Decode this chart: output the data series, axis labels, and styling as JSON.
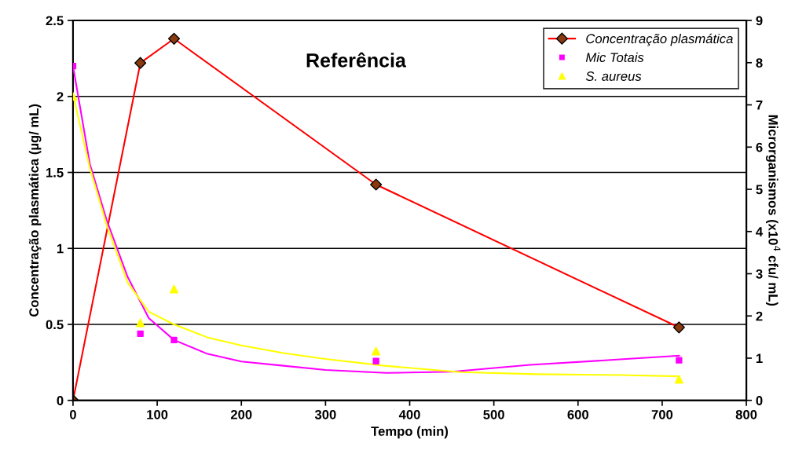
{
  "chart_data": {
    "type": "line",
    "title": "Referência",
    "xlabel": "Tempo (min)",
    "ylabel": "Concentração plasmática (µg/ mL)",
    "y2label": "Microrganismos (x10$^{4}$ cfu/ mL)",
    "xlim": [
      0,
      800
    ],
    "xticks": [
      0,
      100,
      200,
      300,
      400,
      500,
      600,
      700,
      800
    ],
    "ylim": [
      0,
      2.5
    ],
    "yticks": [
      0,
      0.5,
      1,
      1.5,
      2,
      2.5
    ],
    "y2lim": [
      0,
      9
    ],
    "y2ticks": [
      0,
      1,
      2,
      3,
      4,
      5,
      6,
      7,
      8,
      9
    ],
    "grid": "y",
    "legend": "top right",
    "series": [
      {
        "name": "Concentração plasmática",
        "x": [
          0,
          80,
          120,
          360,
          720
        ],
        "values": [
          0,
          2.22,
          2.38,
          1.42,
          0.48
        ],
        "color": "#ff0000",
        "colors": [
          "#8b3a10",
          "#8b3a10",
          "#8b3a10",
          "#8b3a10",
          "#8b3a10"
        ],
        "marker": "diamond"
      },
      {
        "name": "Mic Totais",
        "type": "scatter",
        "axis": "y2",
        "x": [
          0,
          80,
          120,
          360,
          720
        ],
        "values": [
          7.92,
          1.58,
          1.43,
          0.93,
          0.95
        ],
        "color": "#ff00ff",
        "marker": "square"
      },
      {
        "name": "S. aureus",
        "type": "scatter",
        "axis": "y2",
        "x": [
          0,
          80,
          120,
          360,
          720
        ],
        "values": [
          7.2,
          1.84,
          2.64,
          1.17,
          0.5
        ],
        "color": "#ffff00",
        "marker": "triangle"
      },
      {
        "type": "line",
        "axis": "y2",
        "x": [
          0,
          20,
          40,
          65,
          90,
          120,
          160,
          200,
          250,
          300,
          372,
          450,
          543,
          650,
          720
        ],
        "values": [
          7.92,
          5.6,
          4.27,
          2.92,
          1.95,
          1.43,
          1.1,
          0.92,
          0.82,
          0.72,
          0.65,
          0.68,
          0.84,
          0.97,
          1.06
        ],
        "color": "#ff00ff",
        "marker": "none"
      },
      {
        "type": "line",
        "axis": "y2",
        "x": [
          0,
          20,
          40,
          65,
          90,
          120,
          160,
          200,
          250,
          300,
          370,
          460,
          550,
          650,
          720
        ],
        "values": [
          7.25,
          5.5,
          4.15,
          2.79,
          2.1,
          1.8,
          1.49,
          1.3,
          1.12,
          0.98,
          0.82,
          0.67,
          0.62,
          0.6,
          0.57
        ],
        "color": "#ffff00",
        "marker": "none"
      }
    ]
  }
}
